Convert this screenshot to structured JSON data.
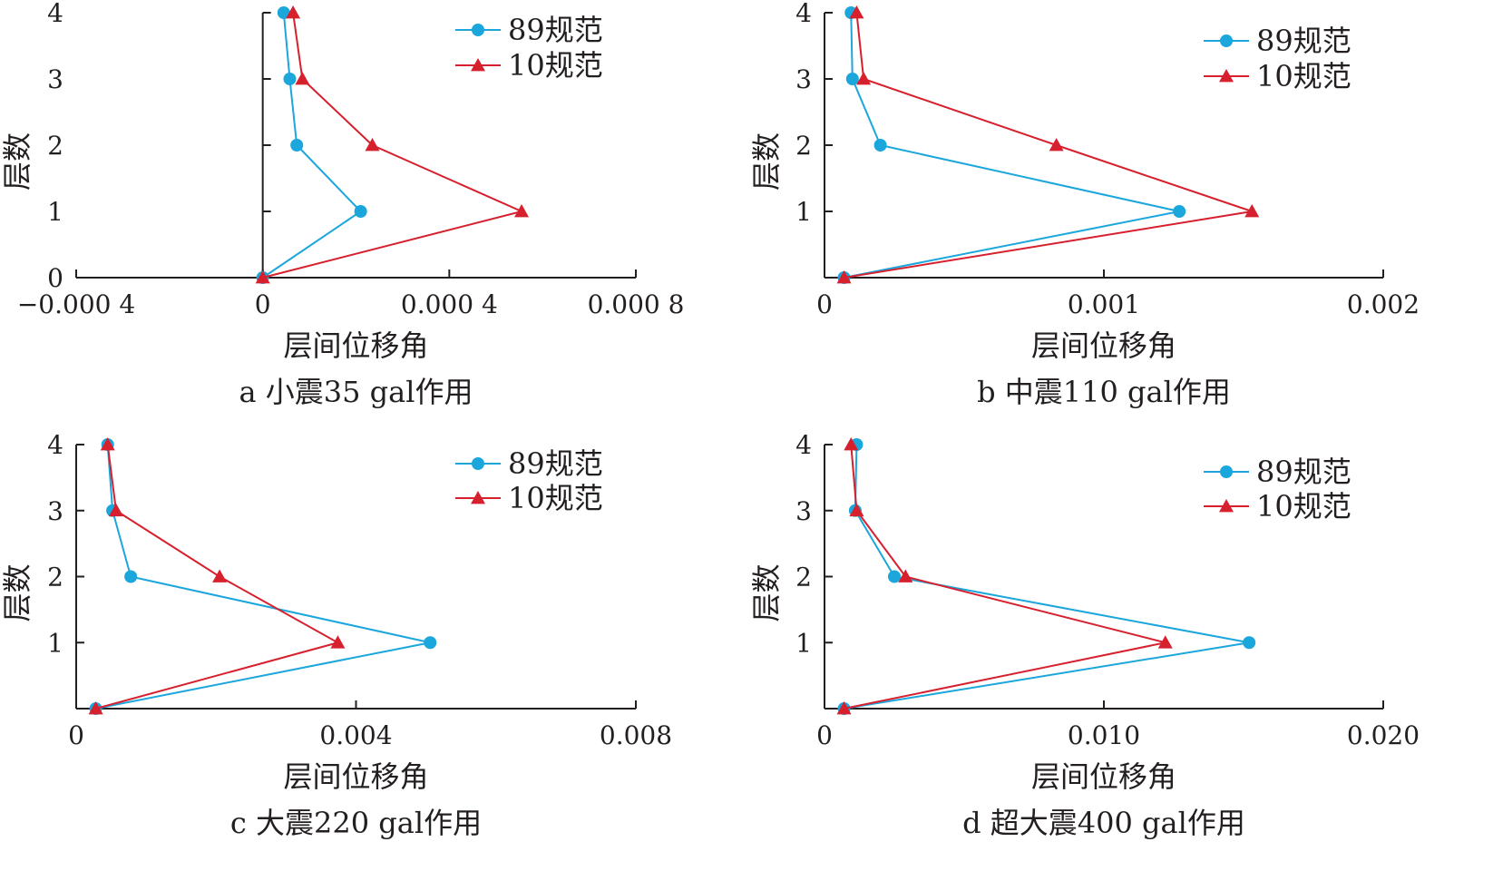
{
  "chart_data": [
    {
      "type": "line",
      "panel": "a",
      "title": "a  小震35 gal作用",
      "xlabel": "层间位移角",
      "ylabel": "层数",
      "xlim": [
        -0.0004,
        0.0008
      ],
      "ylim": [
        0,
        4
      ],
      "x_ticks": [
        -0.0004,
        0,
        0.0004,
        0.0008
      ],
      "x_tick_labels": [
        "−0.000 4",
        "0",
        "0.000 4",
        "0.000 8"
      ],
      "y_ticks": [
        0,
        1,
        2,
        3,
        4
      ],
      "y_tick_labels": [
        "0",
        "1",
        "2",
        "3",
        "4"
      ],
      "legend_position": "top-right",
      "series": [
        {
          "name": "89规范",
          "marker": "circle",
          "color": "#1ba6dc",
          "x": [
            0,
            0.00021,
            7.3e-05,
            5.8e-05,
            4.5e-05
          ],
          "y": [
            0,
            1,
            2,
            3,
            4
          ]
        },
        {
          "name": "10规范",
          "marker": "triangle",
          "color": "#d7202e",
          "x": [
            0,
            0.000555,
            0.000235,
            8.5e-05,
            6.5e-05
          ],
          "y": [
            0,
            1,
            2,
            3,
            4
          ]
        }
      ]
    },
    {
      "type": "line",
      "panel": "b",
      "title": "b  中震110 gal作用",
      "xlabel": "层间位移角",
      "ylabel": "层数",
      "xlim": [
        0,
        0.002
      ],
      "ylim": [
        0,
        4
      ],
      "x_ticks": [
        0,
        0.001,
        0.002
      ],
      "x_tick_labels": [
        "0",
        "0.001",
        "0.002"
      ],
      "y_ticks": [
        1,
        2,
        3,
        4
      ],
      "y_tick_labels": [
        "1",
        "2",
        "3",
        "4"
      ],
      "legend_position": "top-right",
      "series": [
        {
          "name": "89规范",
          "marker": "circle",
          "color": "#1ba6dc",
          "x": [
            7e-05,
            0.00127,
            0.0002,
            0.0001,
            9.5e-05
          ],
          "y": [
            0,
            1,
            2,
            3,
            4
          ]
        },
        {
          "name": "10规范",
          "marker": "triangle",
          "color": "#d7202e",
          "x": [
            7e-05,
            0.00153,
            0.00083,
            0.00014,
            0.000115
          ],
          "y": [
            0,
            1,
            2,
            3,
            4
          ]
        }
      ]
    },
    {
      "type": "line",
      "panel": "c",
      "title": "c  大震220 gal作用",
      "xlabel": "层间位移角",
      "ylabel": "层数",
      "xlim": [
        0,
        0.008
      ],
      "ylim": [
        0,
        4
      ],
      "x_ticks": [
        0,
        0.004,
        0.008
      ],
      "x_tick_labels": [
        "0",
        "0.004",
        "0.008"
      ],
      "y_ticks": [
        1,
        2,
        3,
        4
      ],
      "y_tick_labels": [
        "1",
        "2",
        "3",
        "4"
      ],
      "legend_position": "top-right",
      "series": [
        {
          "name": "89规范",
          "marker": "circle",
          "color": "#1ba6dc",
          "x": [
            0.00028,
            0.00506,
            0.00078,
            0.00052,
            0.00045
          ],
          "y": [
            0,
            1,
            2,
            3,
            4
          ]
        },
        {
          "name": "10规范",
          "marker": "triangle",
          "color": "#d7202e",
          "x": [
            0.00028,
            0.00374,
            0.00205,
            0.00057,
            0.00045
          ],
          "y": [
            0,
            1,
            2,
            3,
            4
          ]
        }
      ]
    },
    {
      "type": "line",
      "panel": "d",
      "title": "d  超大震400 gal作用",
      "xlabel": "层间位移角",
      "ylabel": "层数",
      "xlim": [
        0,
        0.02
      ],
      "ylim": [
        0,
        4
      ],
      "x_ticks": [
        0,
        0.01,
        0.02
      ],
      "x_tick_labels": [
        "0",
        "0.010",
        "0.020"
      ],
      "y_ticks": [
        1,
        2,
        3,
        4
      ],
      "y_tick_labels": [
        "1",
        "2",
        "3",
        "4"
      ],
      "legend_position": "top-right",
      "series": [
        {
          "name": "89规范",
          "marker": "circle",
          "color": "#1ba6dc",
          "x": [
            0.0007,
            0.0152,
            0.0025,
            0.0011,
            0.00115
          ],
          "y": [
            0,
            1,
            2,
            3,
            4
          ]
        },
        {
          "name": "10规范",
          "marker": "triangle",
          "color": "#d7202e",
          "x": [
            0.0007,
            0.0122,
            0.0029,
            0.00115,
            0.00095
          ],
          "y": [
            0,
            1,
            2,
            3,
            4
          ]
        }
      ]
    }
  ]
}
